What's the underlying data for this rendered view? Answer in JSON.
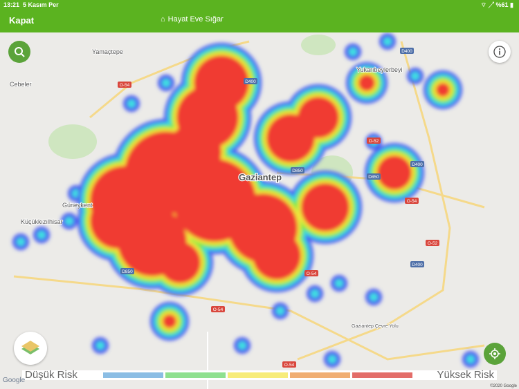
{
  "status": {
    "time": "13:21",
    "date": "5 Kasım Per",
    "battery": "%61"
  },
  "header": {
    "close_label": "Kapat",
    "title": "Hayat Eve Sığar"
  },
  "map": {
    "places": [
      {
        "name": "Yamaçtepe"
      },
      {
        "name": "Cebeler"
      },
      {
        "name": "Güneykent"
      },
      {
        "name": "Küçükkızılhisar"
      },
      {
        "name": "Gaziantep"
      },
      {
        "name": "Yukarıbeylerbeyi"
      },
      {
        "name": "Gaziantep Çevre Yolu"
      }
    ],
    "road_shields": [
      "O-54",
      "D400",
      "D850",
      "O-52",
      "D400",
      "D850",
      "O-54",
      "O-54",
      "O-52",
      "D400",
      "D850",
      "O-54",
      "O-54",
      "D400"
    ],
    "attribution": "Google",
    "copyright": "©2020 Google"
  },
  "legend": {
    "low_label": "Düşük Risk",
    "high_label": "Yüksek Risk",
    "colors": [
      "#8bbde4",
      "#8fe08f",
      "#f7ec7a",
      "#f0ae73",
      "#e36d69"
    ]
  },
  "icons": {
    "search": "search-icon",
    "info": "info-icon",
    "layers": "map-layers-icon",
    "locate": "my-location-icon"
  }
}
